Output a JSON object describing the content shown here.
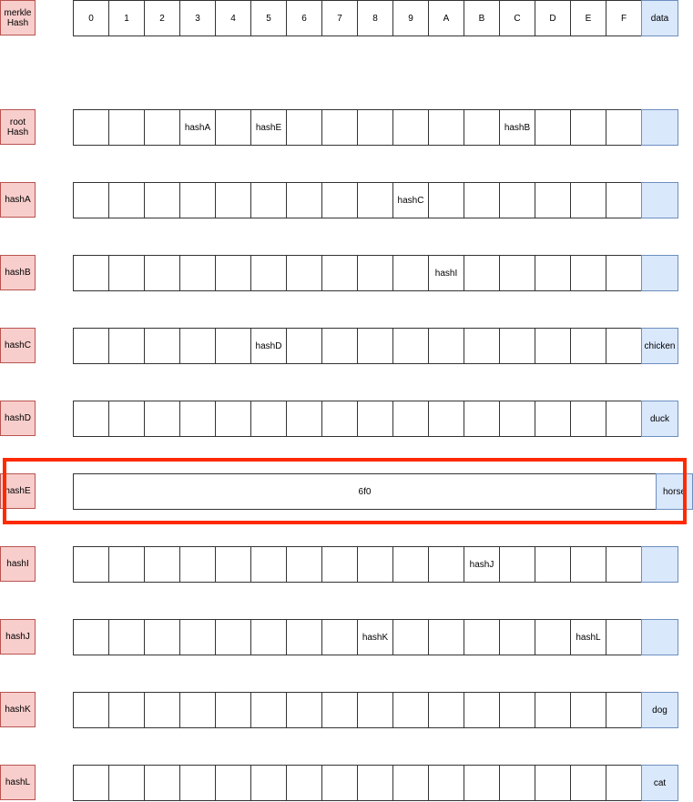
{
  "header": {
    "label": "merkle\nHash",
    "indices": [
      "0",
      "1",
      "2",
      "3",
      "4",
      "5",
      "6",
      "7",
      "8",
      "9",
      "A",
      "B",
      "C",
      "D",
      "E",
      "F"
    ],
    "data_label": "data"
  },
  "rows": [
    {
      "label": "root\nHash",
      "cells": [
        "",
        "",
        "",
        "hashA",
        "",
        "hashE",
        "",
        "",
        "",
        "",
        "",
        "",
        "hashB",
        "",
        "",
        ""
      ],
      "data": ""
    },
    {
      "label": "hashA",
      "cells": [
        "",
        "",
        "",
        "",
        "",
        "",
        "",
        "",
        "",
        "hashC",
        "",
        "",
        "",
        "",
        "",
        ""
      ],
      "data": ""
    },
    {
      "label": "hashB",
      "cells": [
        "",
        "",
        "",
        "",
        "",
        "",
        "",
        "",
        "",
        "",
        "hashI",
        "",
        "",
        "",
        "",
        ""
      ],
      "data": ""
    },
    {
      "label": "hashC",
      "cells": [
        "",
        "",
        "",
        "",
        "",
        "hashD",
        "",
        "",
        "",
        "",
        "",
        "",
        "",
        "",
        "",
        ""
      ],
      "data": "chicken"
    },
    {
      "label": "hashD",
      "cells": [
        "",
        "",
        "",
        "",
        "",
        "",
        "",
        "",
        "",
        "",
        "",
        "",
        "",
        "",
        "",
        ""
      ],
      "data": "duck"
    },
    {
      "label": "hashE",
      "merged": "6f0",
      "data": "horse"
    },
    {
      "label": "hashI",
      "cells": [
        "",
        "",
        "",
        "",
        "",
        "",
        "",
        "",
        "",
        "",
        "",
        "hashJ",
        "",
        "",
        "",
        ""
      ],
      "data": ""
    },
    {
      "label": "hashJ",
      "cells": [
        "",
        "",
        "",
        "",
        "",
        "",
        "",
        "",
        "hashK",
        "",
        "",
        "",
        "",
        "",
        "hashL",
        ""
      ],
      "data": ""
    },
    {
      "label": "hashK",
      "cells": [
        "",
        "",
        "",
        "",
        "",
        "",
        "",
        "",
        "",
        "",
        "",
        "",
        "",
        "",
        "",
        ""
      ],
      "data": "dog"
    },
    {
      "label": "hashL",
      "cells": [
        "",
        "",
        "",
        "",
        "",
        "",
        "",
        "",
        "",
        "",
        "",
        "",
        "",
        "",
        "",
        ""
      ],
      "data": "cat"
    }
  ],
  "colors": {
    "label_fill": "#f8cecc",
    "label_stroke": "#b85450",
    "data_fill": "#dae8fc",
    "data_stroke": "#6c8ebf",
    "highlight": "#ff2a00"
  }
}
